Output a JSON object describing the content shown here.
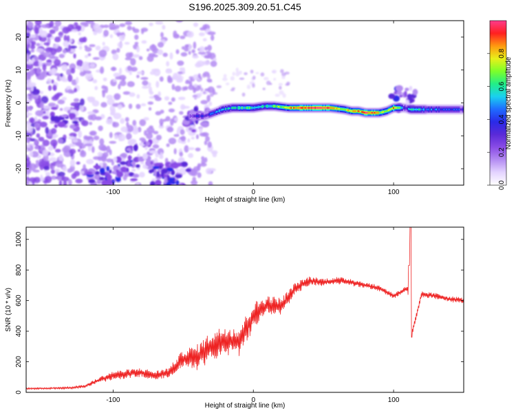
{
  "title": "S196.2025.309.20.51.C45",
  "colors": {
    "snr_line": "#ee2222",
    "ridge": "#cc1111",
    "colormap": [
      "#ffffff",
      "#e4d4ff",
      "#b48cf2",
      "#8a4ce6",
      "#5a2ad8",
      "#2a2ae8",
      "#1f6cff",
      "#1ad0f0",
      "#22ee88",
      "#7cff2a",
      "#e8f01a",
      "#ff9a10",
      "#ff2020",
      "#ff3c8c"
    ]
  },
  "chart_data": [
    {
      "type": "heatmap",
      "title": "",
      "xlabel": "Height of straight line (km)",
      "ylabel": "Frequency (Hz)",
      "xlim": [
        -162,
        150
      ],
      "ylim": [
        -25,
        25
      ],
      "xticks": [
        "-100",
        "0",
        "100"
      ],
      "yticks": [
        "20",
        "10",
        "0",
        "-10",
        "-20"
      ],
      "colorbar": {
        "label": "Normalized spectral amplitude",
        "range": [
          0,
          1
        ],
        "ticks": [
          "0.0",
          "0.2",
          "0.4",
          "0.6",
          "0.8"
        ]
      },
      "ridge": {
        "x": [
          -45,
          -35,
          -28,
          -22,
          -15,
          -8,
          0,
          8,
          15,
          25,
          35,
          45,
          55,
          65,
          70,
          75,
          80,
          85,
          90,
          95,
          100,
          105,
          108,
          112,
          120,
          130,
          140,
          150
        ],
        "y": [
          -4,
          -4,
          -3,
          -2,
          -1.5,
          -1.5,
          -1.5,
          -1,
          -1,
          -1.5,
          -1.5,
          -1.5,
          -1.5,
          -2,
          -2.5,
          -2.5,
          -3,
          -3,
          -3,
          -2.5,
          -1.5,
          -1.5,
          -1.5,
          -2,
          -2,
          -2,
          -2,
          -2
        ],
        "amplitude": [
          0.3,
          0.35,
          0.45,
          0.5,
          0.55,
          0.6,
          0.6,
          0.55,
          0.65,
          0.8,
          0.95,
          0.95,
          0.9,
          0.7,
          0.8,
          0.85,
          0.95,
          0.9,
          0.75,
          0.7,
          0.85,
          0.6,
          0.3,
          0.6,
          0.5,
          0.45,
          0.4,
          0.35
        ]
      },
      "clusters": [
        {
          "x": -135,
          "y": -5,
          "amplitude": 0.3
        },
        {
          "x": -108,
          "y": -22,
          "amplitude": 0.35
        },
        {
          "x": -90,
          "y": -20,
          "amplitude": 0.3
        },
        {
          "x": -80,
          "y": -15,
          "amplitude": 0.25
        },
        {
          "x": -65,
          "y": -22,
          "amplitude": 0.35
        },
        {
          "x": -55,
          "y": -22,
          "amplitude": 0.35
        },
        {
          "x": -40,
          "y": -5,
          "amplitude": 0.3
        },
        {
          "x": 107,
          "y": 1,
          "amplitude": 0.3
        }
      ]
    },
    {
      "type": "line",
      "title": "",
      "xlabel": "Height of straight line (km)",
      "ylabel": "SNR (10 * v/v)",
      "xlim": [
        -162,
        150
      ],
      "ylim": [
        0,
        1080
      ],
      "xticks": [
        "-100",
        "0",
        "100"
      ],
      "yticks": [
        "0",
        "200",
        "400",
        "600",
        "800",
        "1000"
      ],
      "series": [
        {
          "name": "SNR",
          "x": [
            -162,
            -150,
            -140,
            -130,
            -120,
            -110,
            -100,
            -90,
            -80,
            -70,
            -60,
            -50,
            -40,
            -30,
            -20,
            -10,
            0,
            10,
            20,
            30,
            40,
            50,
            60,
            70,
            80,
            90,
            100,
            110,
            113,
            120,
            130,
            140,
            150
          ],
          "y": [
            25,
            25,
            28,
            30,
            40,
            80,
            110,
            120,
            130,
            110,
            130,
            220,
            230,
            300,
            340,
            330,
            500,
            570,
            560,
            680,
            730,
            720,
            730,
            720,
            700,
            680,
            630,
            680,
            380,
            640,
            630,
            610,
            600
          ],
          "jitter": [
            10,
            10,
            12,
            14,
            20,
            40,
            60,
            60,
            60,
            60,
            70,
            120,
            170,
            200,
            200,
            200,
            180,
            130,
            120,
            80,
            60,
            50,
            50,
            50,
            40,
            40,
            40,
            40,
            40,
            40,
            40,
            40,
            40
          ],
          "spikes": [
            {
              "x": 112,
              "y": 1080
            },
            {
              "x": 111,
              "y": 830
            },
            {
              "x": 113,
              "y": 360
            }
          ]
        }
      ]
    }
  ]
}
